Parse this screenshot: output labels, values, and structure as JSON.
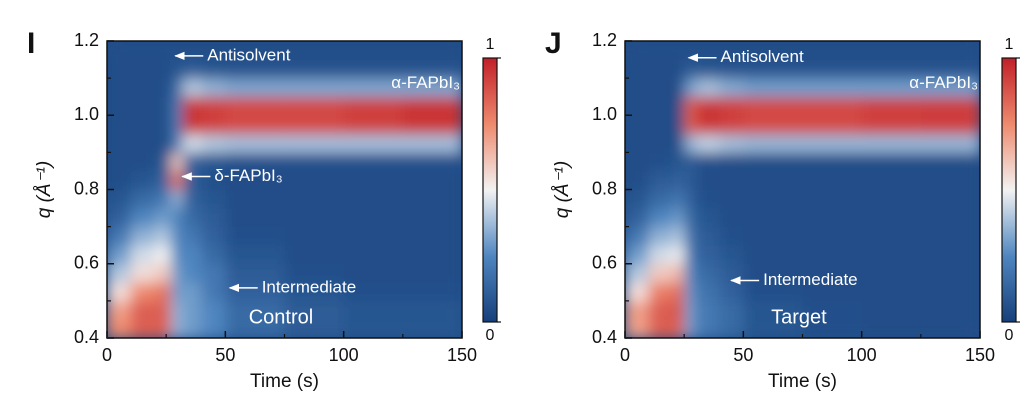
{
  "chart_data": [
    {
      "type": "heatmap",
      "panel": "I",
      "label": "Control",
      "xlabel": "Time (s)",
      "ylabel": "q (Å⁻¹)",
      "xlim": [
        0,
        150
      ],
      "xticks": [
        0,
        50,
        100,
        150
      ],
      "xminorticks": [
        25,
        75,
        125
      ],
      "ylim": [
        0.4,
        1.2
      ],
      "yticks": [
        0.4,
        0.6,
        0.8,
        {
          "value": 1,
          "label": "1.0"
        },
        1.2
      ],
      "yminorticks": [
        0.5,
        0.7,
        0.9,
        1.1
      ],
      "colorbar": {
        "lim": [
          0,
          1
        ],
        "ticks": [
          0,
          1
        ]
      },
      "x_edges": [
        0,
        10,
        20,
        27,
        32,
        40,
        50,
        75,
        100,
        125,
        150
      ],
      "y_edges": [
        0.4,
        0.45,
        0.5,
        0.55,
        0.6,
        0.65,
        0.7,
        0.75,
        0.8,
        0.85,
        0.9,
        0.95,
        1.0,
        1.05,
        1.1,
        1.15,
        1.2
      ],
      "z": [
        [
          0.75,
          0.85,
          0.85,
          0.35,
          0.3,
          0.25,
          0.15,
          0.1,
          0.08,
          0.08
        ],
        [
          0.7,
          0.85,
          0.85,
          0.35,
          0.3,
          0.25,
          0.15,
          0.1,
          0.08,
          0.08
        ],
        [
          0.55,
          0.75,
          0.8,
          0.3,
          0.3,
          0.2,
          0.12,
          0.08,
          0.06,
          0.06
        ],
        [
          0.4,
          0.55,
          0.6,
          0.3,
          0.25,
          0.2,
          0.1,
          0.06,
          0.05,
          0.05
        ],
        [
          0.3,
          0.45,
          0.5,
          0.25,
          0.25,
          0.15,
          0.08,
          0.05,
          0.05,
          0.05
        ],
        [
          0.2,
          0.35,
          0.4,
          0.25,
          0.2,
          0.12,
          0.06,
          0.05,
          0.05,
          0.05
        ],
        [
          0.12,
          0.25,
          0.3,
          0.25,
          0.15,
          0.1,
          0.05,
          0.05,
          0.05,
          0.05
        ],
        [
          0.08,
          0.15,
          0.2,
          0.35,
          0.12,
          0.08,
          0.05,
          0.05,
          0.05,
          0.05
        ],
        [
          0.05,
          0.08,
          0.12,
          0.8,
          0.1,
          0.06,
          0.05,
          0.05,
          0.05,
          0.05
        ],
        [
          0.05,
          0.05,
          0.08,
          0.6,
          0.12,
          0.08,
          0.06,
          0.06,
          0.06,
          0.06
        ],
        [
          0.05,
          0.05,
          0.05,
          0.2,
          0.45,
          0.4,
          0.38,
          0.38,
          0.38,
          0.38
        ],
        [
          0.05,
          0.05,
          0.05,
          0.2,
          0.95,
          0.92,
          0.9,
          0.9,
          0.92,
          0.95
        ],
        [
          0.05,
          0.05,
          0.05,
          0.2,
          0.95,
          0.92,
          0.9,
          0.9,
          0.92,
          0.95
        ],
        [
          0.05,
          0.05,
          0.05,
          0.15,
          0.4,
          0.35,
          0.32,
          0.32,
          0.32,
          0.32
        ],
        [
          0.05,
          0.05,
          0.05,
          0.08,
          0.1,
          0.08,
          0.07,
          0.07,
          0.07,
          0.07
        ],
        [
          0.05,
          0.05,
          0.05,
          0.05,
          0.05,
          0.05,
          0.05,
          0.05,
          0.05,
          0.05
        ]
      ],
      "annotations": [
        {
          "text": "Antisolvent",
          "x": 28,
          "y": 1.16,
          "arrow": true
        },
        {
          "text": "α-FAPbI₃",
          "x": 150,
          "y": 1.085,
          "arrow": false
        },
        {
          "text": "δ-FAPbI₃",
          "x": 31,
          "y": 0.835,
          "arrow": true
        },
        {
          "text": "Intermediate",
          "x": 51,
          "y": 0.535,
          "arrow": true
        }
      ]
    },
    {
      "type": "heatmap",
      "panel": "J",
      "label": "Target",
      "xlabel": "Time (s)",
      "ylabel": "q (Å⁻¹)",
      "xlim": [
        0,
        150
      ],
      "xticks": [
        0,
        50,
        100,
        150
      ],
      "xminorticks": [
        25,
        75,
        125
      ],
      "ylim": [
        0.4,
        1.2
      ],
      "yticks": [
        0.4,
        0.6,
        0.8,
        {
          "value": 1,
          "label": "1.0"
        },
        1.2
      ],
      "yminorticks": [
        0.5,
        0.7,
        0.9,
        1.1
      ],
      "colorbar": {
        "lim": [
          0,
          1
        ],
        "ticks": [
          0,
          1
        ]
      },
      "x_edges": [
        0,
        10,
        20,
        25,
        30,
        40,
        50,
        75,
        100,
        125,
        150
      ],
      "y_edges": [
        0.4,
        0.45,
        0.5,
        0.55,
        0.6,
        0.65,
        0.7,
        0.75,
        0.8,
        0.85,
        0.9,
        0.95,
        1.0,
        1.05,
        1.1,
        1.15,
        1.2
      ],
      "z": [
        [
          0.7,
          0.85,
          0.85,
          0.3,
          0.2,
          0.15,
          0.08,
          0.06,
          0.05,
          0.05
        ],
        [
          0.7,
          0.85,
          0.88,
          0.3,
          0.2,
          0.15,
          0.08,
          0.06,
          0.05,
          0.05
        ],
        [
          0.55,
          0.78,
          0.82,
          0.28,
          0.18,
          0.12,
          0.06,
          0.05,
          0.05,
          0.05
        ],
        [
          0.4,
          0.6,
          0.65,
          0.25,
          0.15,
          0.1,
          0.05,
          0.05,
          0.05,
          0.05
        ],
        [
          0.3,
          0.45,
          0.5,
          0.2,
          0.12,
          0.08,
          0.05,
          0.05,
          0.05,
          0.05
        ],
        [
          0.2,
          0.35,
          0.4,
          0.18,
          0.1,
          0.06,
          0.05,
          0.05,
          0.05,
          0.05
        ],
        [
          0.12,
          0.25,
          0.3,
          0.15,
          0.08,
          0.05,
          0.05,
          0.05,
          0.05,
          0.05
        ],
        [
          0.08,
          0.15,
          0.2,
          0.12,
          0.06,
          0.05,
          0.05,
          0.05,
          0.05,
          0.05
        ],
        [
          0.05,
          0.1,
          0.12,
          0.1,
          0.05,
          0.05,
          0.05,
          0.05,
          0.05,
          0.05
        ],
        [
          0.05,
          0.06,
          0.08,
          0.1,
          0.06,
          0.05,
          0.05,
          0.05,
          0.05,
          0.05
        ],
        [
          0.05,
          0.05,
          0.05,
          0.35,
          0.42,
          0.38,
          0.36,
          0.36,
          0.36,
          0.36
        ],
        [
          0.05,
          0.05,
          0.05,
          0.85,
          0.95,
          0.92,
          0.9,
          0.9,
          0.92,
          0.93
        ],
        [
          0.05,
          0.05,
          0.05,
          0.85,
          0.95,
          0.92,
          0.9,
          0.9,
          0.92,
          0.93
        ],
        [
          0.05,
          0.05,
          0.05,
          0.3,
          0.38,
          0.33,
          0.3,
          0.3,
          0.3,
          0.3
        ],
        [
          0.05,
          0.05,
          0.05,
          0.1,
          0.08,
          0.07,
          0.07,
          0.07,
          0.07,
          0.07
        ],
        [
          0.05,
          0.05,
          0.05,
          0.05,
          0.05,
          0.05,
          0.05,
          0.05,
          0.05,
          0.05
        ]
      ],
      "annotations": [
        {
          "text": "Antisolvent",
          "x": 26,
          "y": 1.155,
          "arrow": true
        },
        {
          "text": "α-FAPbI₃",
          "x": 150,
          "y": 1.085,
          "arrow": false
        },
        {
          "text": "Intermediate",
          "x": 44,
          "y": 0.555,
          "arrow": true
        }
      ]
    }
  ]
}
